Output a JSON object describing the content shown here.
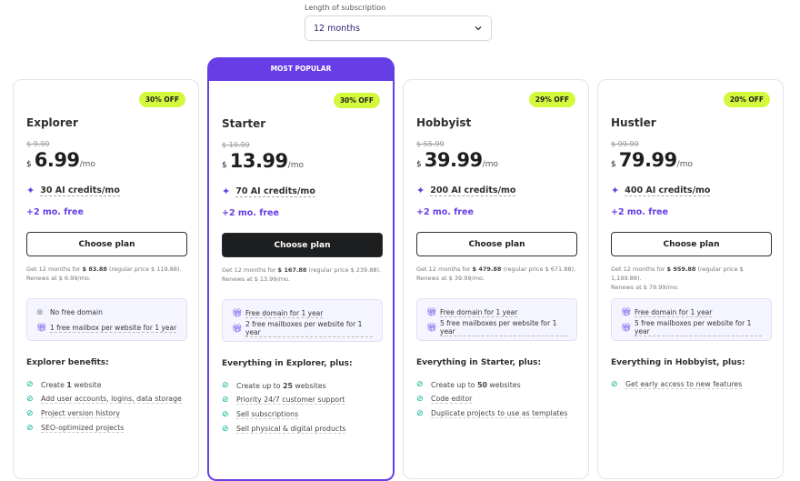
{
  "subscription": {
    "label": "Length of subscription",
    "value": "12 months"
  },
  "popular_label": "MOST POPULAR",
  "choose_label": "Choose plan",
  "free_months": "+2 mo. free",
  "plans": [
    {
      "name": "Explorer",
      "badge": "30% OFF",
      "old": "$ 9.99",
      "currency": "$",
      "price": "6.99",
      "per": "/mo",
      "credits": "30 AI credits/mo",
      "note_a": "Get 12 months for ",
      "note_total": "$ 83.88",
      "note_b": " (regular price $ 119.88).",
      "note_c": "Renews at $ 6.99/mo.",
      "box": [
        {
          "icon": "x-circle-icon",
          "text": "No free domain"
        },
        {
          "icon": "gift-icon",
          "text": "1 free mailbox per website for 1 year"
        }
      ],
      "benefits_title": "Explorer benefits:",
      "features": [
        {
          "pre": "Create ",
          "bold": "1",
          "post": " website"
        },
        {
          "pre": "Add user accounts, logins, data storage",
          "bold": "",
          "post": ""
        },
        {
          "pre": "Project version history",
          "bold": "",
          "post": ""
        },
        {
          "pre": "SEO-optimized projects",
          "bold": "",
          "post": ""
        }
      ]
    },
    {
      "name": "Starter",
      "badge": "30% OFF",
      "old": "$ 19.99",
      "currency": "$",
      "price": "13.99",
      "per": "/mo",
      "credits": "70 AI credits/mo",
      "note_a": "Get 12 months for ",
      "note_total": "$ 167.88",
      "note_b": " (regular price $ 239.88).",
      "note_c": "Renews at $ 13.99/mo.",
      "box": [
        {
          "icon": "gift-icon",
          "text": "Free domain for 1 year"
        },
        {
          "icon": "gift-icon",
          "text": "2 free mailboxes per website for 1 year"
        }
      ],
      "benefits_title": "Everything in Explorer, plus:",
      "features": [
        {
          "pre": "Create up to ",
          "bold": "25",
          "post": " websites"
        },
        {
          "pre": "Priority 24/7 customer support",
          "bold": "",
          "post": ""
        },
        {
          "pre": "Sell subscriptions",
          "bold": "",
          "post": ""
        },
        {
          "pre": "Sell physical & digital products",
          "bold": "",
          "post": ""
        }
      ]
    },
    {
      "name": "Hobbyist",
      "badge": "29% OFF",
      "old": "$ 55.99",
      "currency": "$",
      "price": "39.99",
      "per": "/mo",
      "credits": "200 AI credits/mo",
      "note_a": "Get 12 months for ",
      "note_total": "$ 479.88",
      "note_b": " (regular price $ 671.88).",
      "note_c": "Renews at $ 39.99/mo.",
      "box": [
        {
          "icon": "gift-icon",
          "text": "Free domain for 1 year"
        },
        {
          "icon": "gift-icon",
          "text": "5 free mailboxes per website for 1 year"
        }
      ],
      "benefits_title": "Everything in Starter, plus:",
      "features": [
        {
          "pre": "Create up to ",
          "bold": "50",
          "post": " websites"
        },
        {
          "pre": "Code editor",
          "bold": "",
          "post": ""
        },
        {
          "pre": "Duplicate projects to use as templates",
          "bold": "",
          "post": ""
        }
      ]
    },
    {
      "name": "Hustler",
      "badge": "20% OFF",
      "old": "$ 99.99",
      "currency": "$",
      "price": "79.99",
      "per": "/mo",
      "credits": "400 AI credits/mo",
      "note_a": "Get 12 months for ",
      "note_total": "$ 959.88",
      "note_b": " (regular price $ 1,199.88).",
      "note_c": "Renews at $ 79.99/mo.",
      "box": [
        {
          "icon": "gift-icon",
          "text": "Free domain for 1 year"
        },
        {
          "icon": "gift-icon",
          "text": "5 free mailboxes per website for 1 year"
        }
      ],
      "benefits_title": "Everything in Hobbyist, plus:",
      "features": [
        {
          "pre": "Get early access to new features",
          "bold": "",
          "post": ""
        }
      ]
    }
  ],
  "colors": {
    "accent": "#673de6",
    "badge": "#d4f83b",
    "check": "#00b090"
  }
}
